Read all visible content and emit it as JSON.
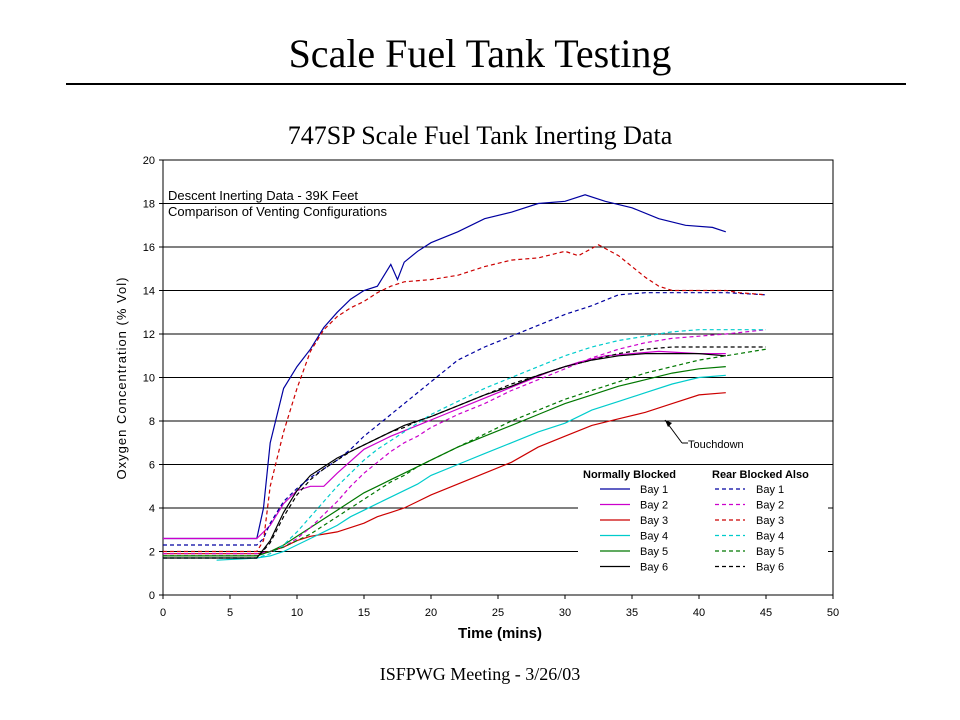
{
  "slide": {
    "title": "Scale Fuel Tank Testing",
    "footer": "ISFPWG Meeting - 3/26/03"
  },
  "chart_data": {
    "type": "line",
    "title": "747SP Scale Fuel Tank Inerting Data",
    "annotation_lines": [
      "Descent Inerting Data - 39K Feet",
      "Comparison of Venting Configurations"
    ],
    "callout": "Touchdown",
    "xlabel": "Time (mins)",
    "ylabel": "Oxygen Concentration (% Vol)",
    "xlim": [
      0,
      50
    ],
    "ylim": [
      0,
      20
    ],
    "xticks": [
      0,
      5,
      10,
      15,
      20,
      25,
      30,
      35,
      40,
      45,
      50
    ],
    "yticks": [
      0,
      2,
      4,
      6,
      8,
      10,
      12,
      14,
      16,
      18,
      20
    ],
    "grid": "horizontal",
    "legend": {
      "placement": "bottom-right",
      "group_headers": [
        "Normally Blocked",
        "Rear Blocked Also"
      ],
      "entries": [
        "Bay 1",
        "Bay 2",
        "Bay 3",
        "Bay 4",
        "Bay 5",
        "Bay 6"
      ]
    },
    "series": [
      {
        "name": "Bay 1",
        "group": "Normally Blocked",
        "color": "#0000a0",
        "dash": "solid",
        "x": [
          0,
          7,
          7.5,
          8,
          9,
          10,
          11,
          12,
          13,
          14,
          15,
          16,
          17,
          17.5,
          18,
          19,
          20,
          22,
          24,
          26,
          28,
          30,
          31.5,
          33,
          35,
          37,
          39,
          41,
          42
        ],
        "y": [
          2.6,
          2.6,
          4,
          7,
          9.5,
          10.5,
          11.3,
          12.3,
          13,
          13.6,
          14,
          14.2,
          15.2,
          14.5,
          15.3,
          15.8,
          16.2,
          16.7,
          17.3,
          17.6,
          18,
          18.1,
          18.4,
          18.1,
          17.8,
          17.3,
          17,
          16.9,
          16.7
        ]
      },
      {
        "name": "Bay 2",
        "group": "Normally Blocked",
        "color": "#cc00cc",
        "dash": "solid",
        "x": [
          0,
          7,
          8,
          9,
          10,
          11,
          12,
          13,
          15,
          17,
          19,
          21,
          23,
          25,
          27,
          29,
          31,
          33,
          35,
          37,
          40,
          42
        ],
        "y": [
          2.6,
          2.6,
          3.2,
          4.2,
          4.8,
          5,
          5,
          5.6,
          6.7,
          7.3,
          7.8,
          8.3,
          8.8,
          9.3,
          9.8,
          10.3,
          10.7,
          11,
          11.1,
          11.2,
          11.1,
          11.1
        ]
      },
      {
        "name": "Bay 3",
        "group": "Normally Blocked",
        "color": "#cc0000",
        "dash": "solid",
        "x": [
          0,
          7,
          8,
          9,
          10,
          11,
          12,
          13,
          14,
          15,
          16,
          17,
          18,
          19,
          20,
          22,
          24,
          26,
          28,
          30,
          32,
          34,
          36,
          38,
          40,
          42
        ],
        "y": [
          1.9,
          1.9,
          2,
          2.2,
          2.5,
          2.7,
          2.8,
          2.9,
          3.1,
          3.3,
          3.6,
          3.8,
          4,
          4.3,
          4.6,
          5.1,
          5.6,
          6.1,
          6.8,
          7.3,
          7.8,
          8.1,
          8.4,
          8.8,
          9.2,
          9.3
        ]
      },
      {
        "name": "Bay 4",
        "group": "Normally Blocked",
        "color": "#00cccc",
        "dash": "solid",
        "x": [
          4,
          7,
          8,
          9,
          10,
          11,
          12,
          13,
          14,
          15,
          16,
          17,
          18,
          19,
          20,
          22,
          24,
          26,
          28,
          30,
          32,
          34,
          36,
          38,
          40,
          42
        ],
        "y": [
          1.6,
          1.7,
          1.8,
          2,
          2.3,
          2.6,
          2.9,
          3.2,
          3.6,
          3.9,
          4.2,
          4.5,
          4.8,
          5.1,
          5.5,
          6,
          6.5,
          7,
          7.5,
          7.9,
          8.5,
          8.9,
          9.3,
          9.7,
          10,
          10.1
        ]
      },
      {
        "name": "Bay 5",
        "group": "Normally Blocked",
        "color": "#007700",
        "dash": "solid",
        "x": [
          0,
          7,
          8,
          9,
          10,
          11,
          12,
          13,
          14,
          15,
          16,
          17,
          18,
          19,
          20,
          22,
          24,
          26,
          28,
          30,
          32,
          34,
          36,
          38,
          40,
          42
        ],
        "y": [
          1.8,
          1.8,
          2,
          2.3,
          2.7,
          3.1,
          3.5,
          3.9,
          4.3,
          4.7,
          5,
          5.3,
          5.6,
          5.9,
          6.2,
          6.8,
          7.3,
          7.8,
          8.3,
          8.8,
          9.2,
          9.6,
          9.9,
          10.2,
          10.4,
          10.5
        ]
      },
      {
        "name": "Bay 6",
        "group": "Normally Blocked",
        "color": "#000000",
        "dash": "solid",
        "x": [
          0,
          7,
          8,
          9,
          10,
          11,
          12,
          13,
          14,
          15,
          16,
          17,
          18,
          19,
          20,
          22,
          24,
          26,
          28,
          30,
          32,
          34,
          36,
          38,
          40,
          42
        ],
        "y": [
          1.7,
          1.7,
          2.5,
          3.8,
          4.8,
          5.5,
          5.9,
          6.3,
          6.6,
          6.9,
          7.2,
          7.5,
          7.8,
          8,
          8.2,
          8.7,
          9.2,
          9.6,
          10.1,
          10.5,
          10.8,
          11,
          11.1,
          11.1,
          11.1,
          11
        ]
      },
      {
        "name": "Bay 1",
        "group": "Rear Blocked Also",
        "color": "#0000a0",
        "dash": "dashed",
        "x": [
          0,
          7,
          7.5,
          8,
          9,
          10,
          11,
          12,
          13,
          14,
          15,
          16,
          17,
          18,
          20,
          22,
          24,
          26,
          28,
          30,
          32,
          34,
          36,
          38,
          40,
          42,
          45
        ],
        "y": [
          2.3,
          2.3,
          2.6,
          3.3,
          4.3,
          4.9,
          5.4,
          5.8,
          6.2,
          6.7,
          7.3,
          7.8,
          8.3,
          8.8,
          9.8,
          10.8,
          11.4,
          11.9,
          12.4,
          12.9,
          13.3,
          13.8,
          13.9,
          13.9,
          13.9,
          13.9,
          13.8
        ]
      },
      {
        "name": "Bay 2",
        "group": "Rear Blocked Also",
        "color": "#cc00cc",
        "dash": "dashed",
        "x": [
          0,
          7,
          8,
          9,
          10,
          11,
          12,
          13,
          14,
          15,
          16,
          17,
          18,
          19,
          20,
          22,
          24,
          26,
          28,
          30,
          32,
          34,
          36,
          38,
          40,
          42,
          45
        ],
        "y": [
          1.9,
          1.9,
          2,
          2.2,
          2.6,
          3.1,
          3.7,
          4.3,
          5,
          5.6,
          6.1,
          6.6,
          7,
          7.3,
          7.7,
          8.3,
          8.8,
          9.4,
          9.9,
          10.4,
          10.9,
          11.3,
          11.6,
          11.8,
          11.9,
          12,
          12.2
        ]
      },
      {
        "name": "Bay 3",
        "group": "Rear Blocked Also",
        "color": "#cc0000",
        "dash": "dashed",
        "x": [
          0,
          7,
          7.5,
          8,
          9,
          10,
          11,
          12,
          13,
          14,
          15,
          16,
          17,
          18,
          20,
          22,
          24,
          26,
          28,
          30,
          31,
          32.5,
          34,
          35,
          36,
          37,
          38,
          40,
          42,
          43,
          45
        ],
        "y": [
          2,
          2,
          2.5,
          5,
          7.5,
          9.5,
          11.2,
          12.2,
          12.8,
          13.2,
          13.5,
          13.9,
          14.2,
          14.4,
          14.5,
          14.7,
          15.1,
          15.4,
          15.5,
          15.8,
          15.6,
          16.1,
          15.6,
          15.1,
          14.6,
          14.2,
          14.0,
          14.0,
          14.0,
          13.9,
          13.8
        ]
      },
      {
        "name": "Bay 4",
        "group": "Rear Blocked Also",
        "color": "#00cccc",
        "dash": "dashed",
        "x": [
          0,
          7,
          8,
          9,
          10,
          11,
          12,
          13,
          14,
          15,
          16,
          17,
          18,
          19,
          20,
          22,
          24,
          26,
          28,
          30,
          32,
          34,
          36,
          38,
          40,
          42,
          45
        ],
        "y": [
          1.7,
          1.7,
          1.9,
          2.3,
          2.9,
          3.6,
          4.3,
          5,
          5.6,
          6.2,
          6.7,
          7.1,
          7.5,
          7.9,
          8.3,
          8.9,
          9.5,
          10,
          10.5,
          11,
          11.4,
          11.7,
          11.9,
          12.1,
          12.2,
          12.2,
          12.2
        ]
      },
      {
        "name": "Bay 5",
        "group": "Rear Blocked Also",
        "color": "#007700",
        "dash": "dashed",
        "x": [
          0,
          7,
          8,
          9,
          10,
          11,
          12,
          13,
          14,
          15,
          16,
          17,
          18,
          19,
          20,
          22,
          24,
          26,
          28,
          30,
          32,
          34,
          36,
          38,
          40,
          42,
          45
        ],
        "y": [
          1.8,
          1.8,
          2,
          2.2,
          2.5,
          2.8,
          3.2,
          3.6,
          4,
          4.4,
          4.8,
          5.2,
          5.5,
          5.9,
          6.2,
          6.8,
          7.4,
          8,
          8.5,
          9,
          9.4,
          9.8,
          10.2,
          10.5,
          10.8,
          11,
          11.3
        ]
      },
      {
        "name": "Bay 6",
        "group": "Rear Blocked Also",
        "color": "#000000",
        "dash": "dashed",
        "x": [
          0,
          7,
          8,
          9,
          10,
          11,
          12,
          13,
          14,
          15,
          16,
          17,
          18,
          19,
          20,
          22,
          24,
          26,
          28,
          30,
          32,
          34,
          36,
          38,
          40,
          42,
          45
        ],
        "y": [
          1.7,
          1.7,
          2.4,
          3.6,
          4.6,
          5.3,
          5.8,
          6.2,
          6.6,
          6.9,
          7.2,
          7.5,
          7.7,
          8,
          8.2,
          8.7,
          9.2,
          9.7,
          10.1,
          10.5,
          10.8,
          11.1,
          11.3,
          11.4,
          11.4,
          11.4,
          11.4
        ]
      }
    ]
  }
}
